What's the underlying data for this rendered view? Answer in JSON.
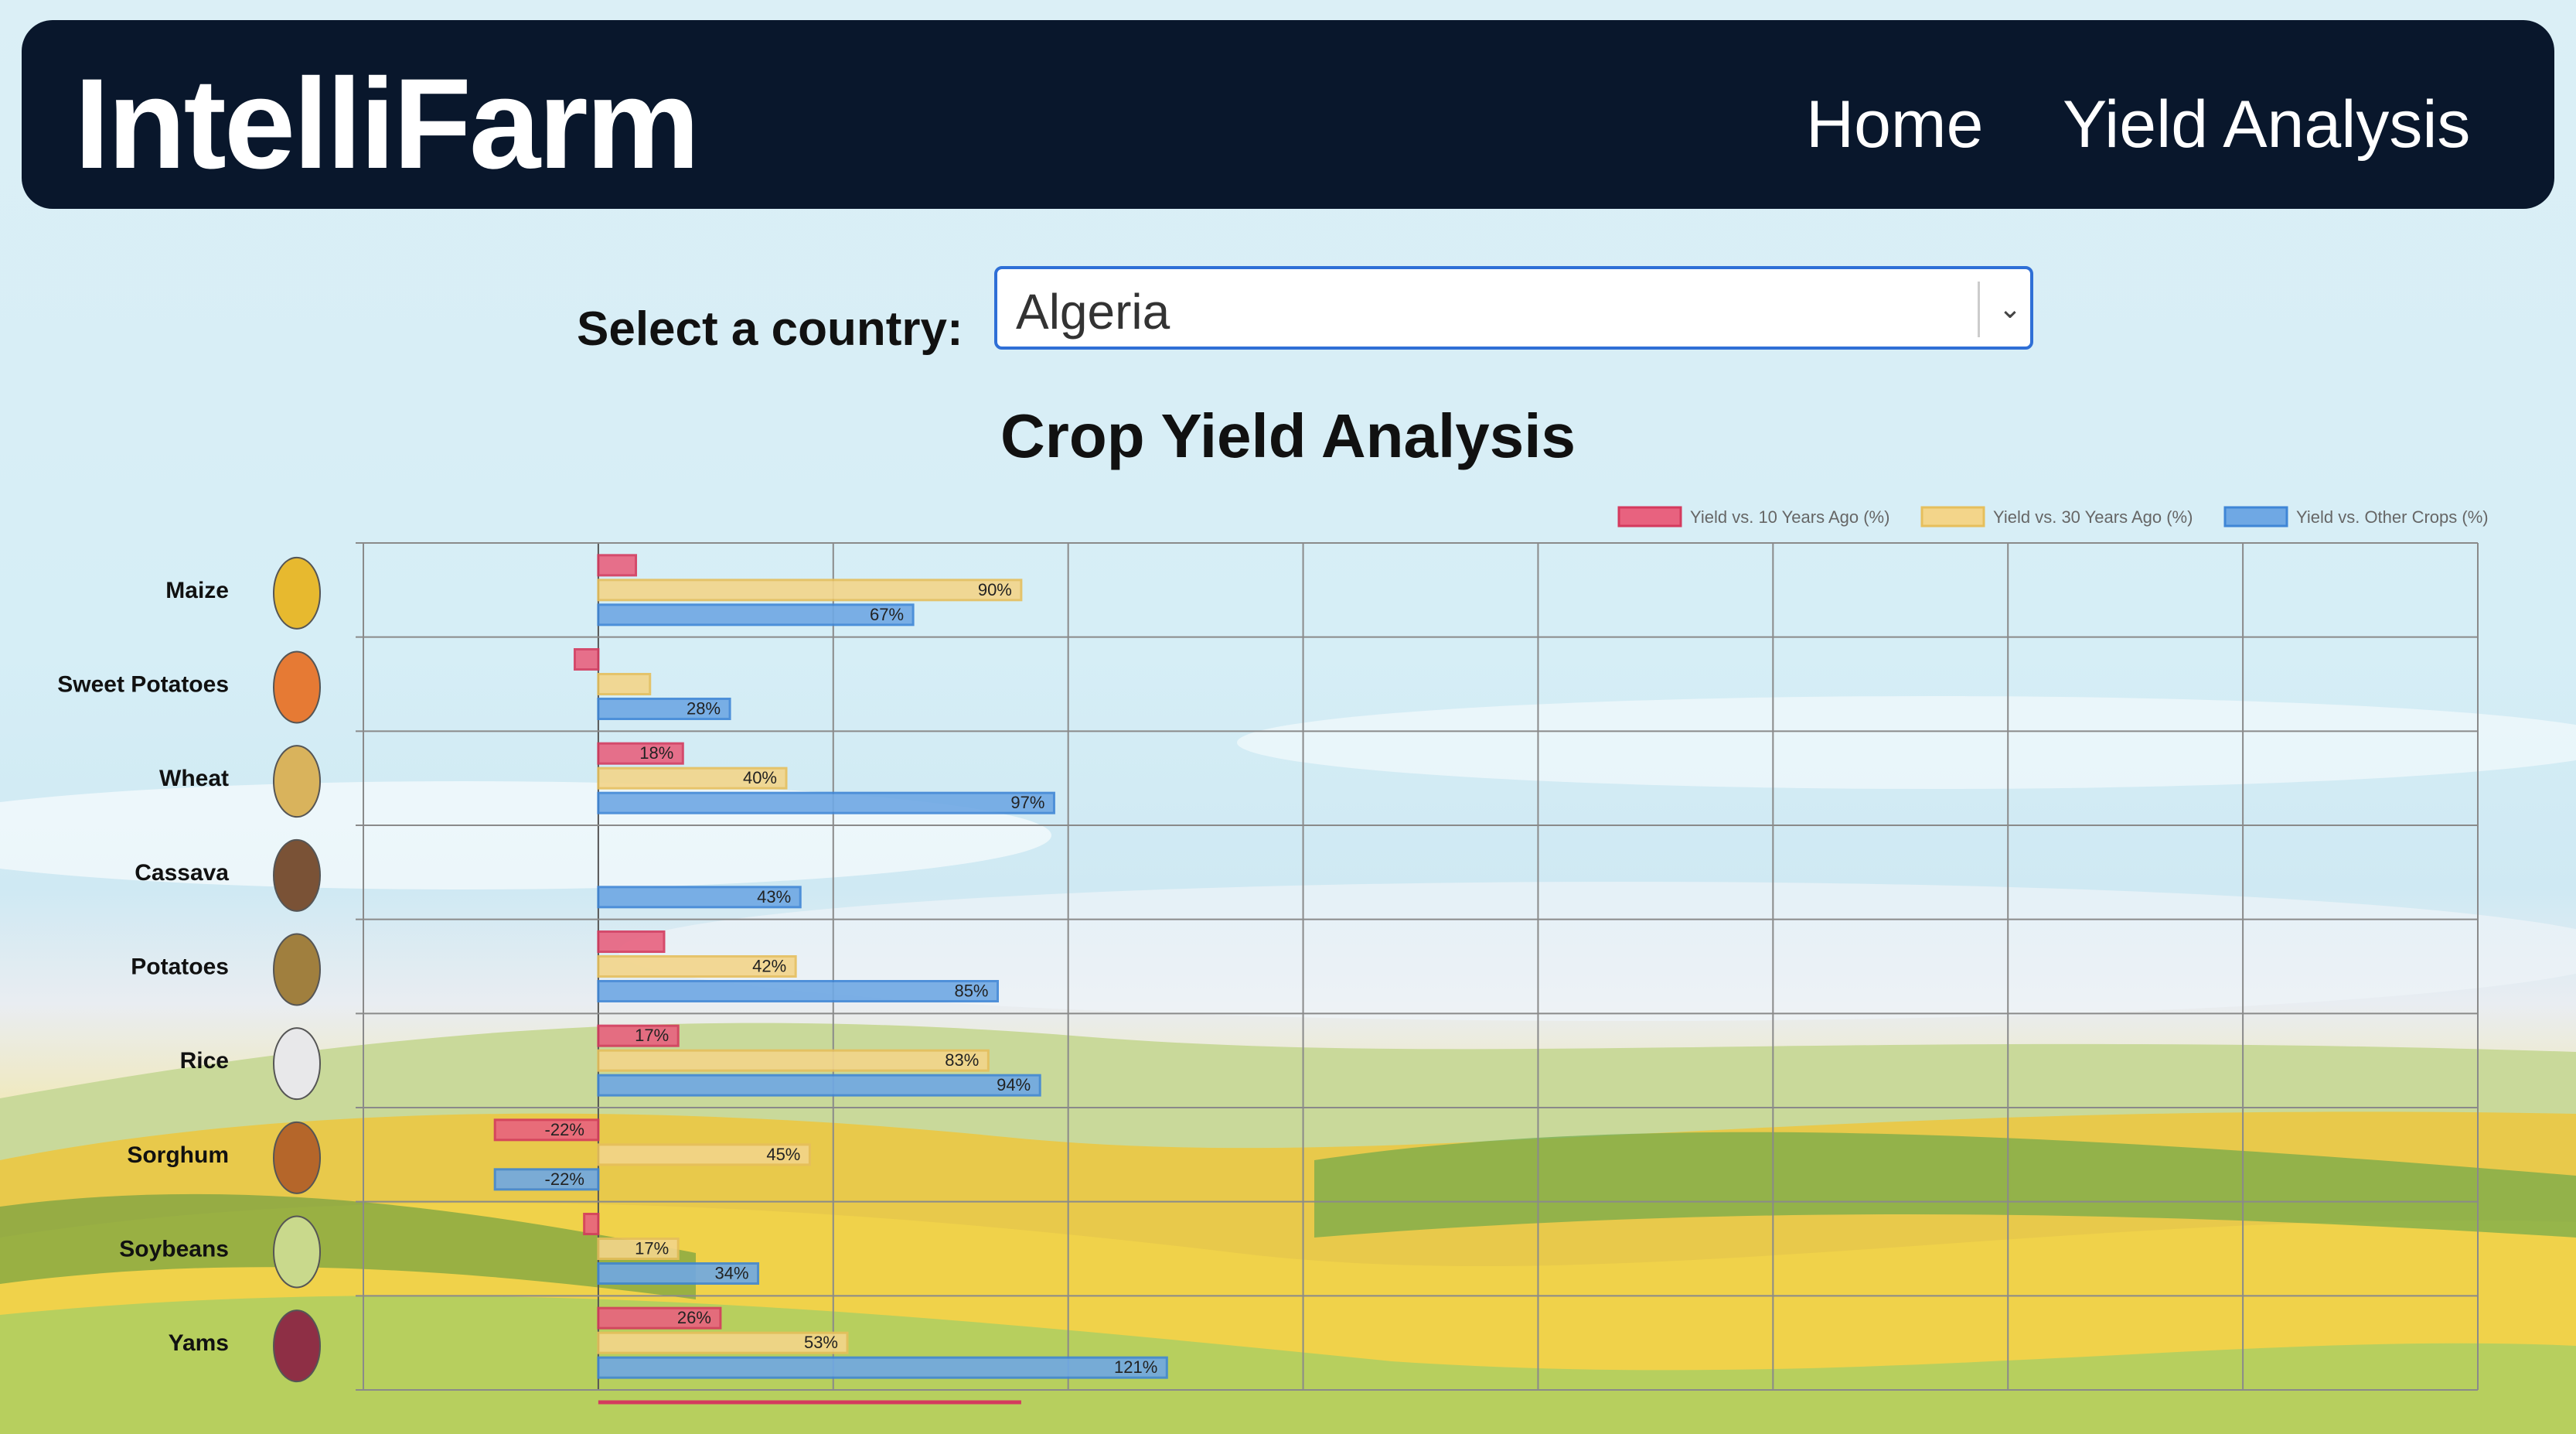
{
  "navbar": {
    "brand": "IntelliFarm",
    "links": [
      "Home",
      "Yield Analysis"
    ]
  },
  "country_select": {
    "label": "Select a country:",
    "value": "Algeria"
  },
  "colors": {
    "navbar_bg": "#09172c",
    "series_10y": "#e8627f",
    "series_30y": "#f3d58a",
    "series_other": "#6fa8e4"
  },
  "icons": [
    "corn-icon",
    "sweet-potato-icon",
    "wheat-icon",
    "cassava-icon",
    "potato-icon",
    "rice-icon",
    "sorghum-icon",
    "soybean-icon",
    "yam-icon",
    "chevron-down-icon"
  ],
  "chart_data": {
    "type": "bar",
    "orientation": "horizontal",
    "title": "Crop Yield Analysis",
    "categories": [
      "Maize",
      "Sweet Potatoes",
      "Wheat",
      "Cassava",
      "Potatoes",
      "Rice",
      "Sorghum",
      "Soybeans",
      "Yams"
    ],
    "series": [
      {
        "name": "Yield vs. 10 Years Ago (%)",
        "values": [
          8,
          -5,
          18,
          0,
          14,
          17,
          -22,
          -3,
          26
        ],
        "labels": [
          "",
          "",
          "18%",
          "",
          "",
          "17%",
          "-22%",
          "",
          "26%"
        ]
      },
      {
        "name": "Yield vs. 30 Years Ago (%)",
        "values": [
          90,
          11,
          40,
          0,
          42,
          83,
          45,
          17,
          53
        ],
        "labels": [
          "90%",
          "",
          "40%",
          "",
          "42%",
          "83%",
          "45%",
          "17%",
          "53%"
        ]
      },
      {
        "name": "Yield vs. Other Crops (%)",
        "values": [
          67,
          28,
          97,
          43,
          85,
          94,
          -22,
          34,
          121
        ],
        "labels": [
          "67%",
          "28%",
          "97%",
          "43%",
          "85%",
          "94%",
          "-22%",
          "34%",
          "121%"
        ]
      }
    ],
    "xlim": [
      -50,
      400
    ],
    "grid": true,
    "legend": "top-right"
  }
}
